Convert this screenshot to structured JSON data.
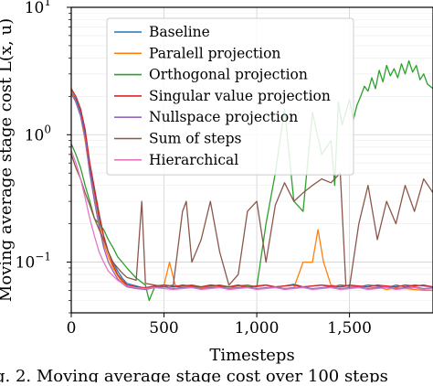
{
  "chart_data": {
    "type": "line",
    "xlabel": "Timesteps",
    "ylabel": "Moving average stage cost L(x, u)",
    "xlim": [
      0,
      1950
    ],
    "ylim": [
      0.04,
      10
    ],
    "yscale": "log",
    "grid": true,
    "legend_placement": "top-left",
    "x_ticks": [
      {
        "value": 0,
        "label": "0"
      },
      {
        "value": 500,
        "label": "500"
      },
      {
        "value": 1000,
        "label": "1,000"
      },
      {
        "value": 1500,
        "label": "1,500"
      }
    ],
    "y_ticks": [
      {
        "value": 0.1,
        "label": "10⁻¹",
        "base": "10",
        "exp": "−1"
      },
      {
        "value": 1,
        "label": "10⁰",
        "base": "10",
        "exp": "0"
      },
      {
        "value": 10,
        "label": "10¹",
        "base": "10",
        "exp": "1"
      }
    ],
    "series": [
      {
        "name": "Baseline",
        "color": "#1f77b4",
        "x": [
          0,
          25,
          50,
          75,
          100,
          125,
          150,
          175,
          200,
          225,
          250,
          275,
          300,
          350,
          400,
          450,
          500,
          550,
          600,
          650,
          700,
          750,
          800,
          850,
          900,
          950,
          1000,
          1050,
          1100,
          1150,
          1200,
          1250,
          1300,
          1350,
          1400,
          1450,
          1500,
          1550,
          1600,
          1650,
          1700,
          1750,
          1800,
          1850,
          1900,
          1950
        ],
        "y": [
          2.2,
          1.9,
          1.5,
          1.0,
          0.55,
          0.35,
          0.22,
          0.16,
          0.12,
          0.1,
          0.085,
          0.075,
          0.068,
          0.065,
          0.062,
          0.064,
          0.066,
          0.065,
          0.063,
          0.066,
          0.064,
          0.066,
          0.065,
          0.064,
          0.066,
          0.063,
          0.065,
          0.066,
          0.064,
          0.065,
          0.067,
          0.064,
          0.065,
          0.066,
          0.064,
          0.066,
          0.065,
          0.064,
          0.066,
          0.065,
          0.063,
          0.066,
          0.064,
          0.066,
          0.065,
          0.064
        ]
      },
      {
        "name": "Paralell projection",
        "color": "#ff7f0e",
        "x": [
          0,
          25,
          50,
          75,
          100,
          125,
          150,
          175,
          200,
          225,
          250,
          275,
          300,
          350,
          400,
          450,
          500,
          530,
          560,
          600,
          650,
          700,
          750,
          800,
          850,
          900,
          950,
          1000,
          1050,
          1100,
          1150,
          1200,
          1250,
          1300,
          1330,
          1360,
          1400,
          1450,
          1500,
          1550,
          1600,
          1650,
          1700,
          1750,
          1800,
          1850,
          1900,
          1950
        ],
        "y": [
          2.2,
          1.8,
          1.4,
          0.9,
          0.5,
          0.32,
          0.2,
          0.14,
          0.11,
          0.09,
          0.078,
          0.07,
          0.066,
          0.064,
          0.062,
          0.064,
          0.066,
          0.1,
          0.066,
          0.064,
          0.065,
          0.063,
          0.064,
          0.066,
          0.064,
          0.063,
          0.065,
          0.064,
          0.066,
          0.064,
          0.062,
          0.063,
          0.1,
          0.1,
          0.18,
          0.1,
          0.066,
          0.064,
          0.065,
          0.063,
          0.062,
          0.064,
          0.061,
          0.063,
          0.062,
          0.061,
          0.06,
          0.06
        ]
      },
      {
        "name": "Orthogonal projection",
        "color": "#2ca02c",
        "x": [
          0,
          25,
          50,
          75,
          100,
          125,
          150,
          175,
          200,
          225,
          250,
          275,
          300,
          350,
          400,
          420,
          450,
          500,
          550,
          600,
          650,
          700,
          750,
          800,
          850,
          900,
          950,
          1000,
          1050,
          1100,
          1150,
          1200,
          1250,
          1300,
          1350,
          1400,
          1420,
          1440,
          1460,
          1480,
          1500,
          1520,
          1540,
          1560,
          1580,
          1600,
          1620,
          1640,
          1660,
          1680,
          1700,
          1720,
          1740,
          1760,
          1780,
          1800,
          1820,
          1840,
          1860,
          1880,
          1900,
          1920,
          1950
        ],
        "y": [
          0.85,
          0.7,
          0.55,
          0.4,
          0.3,
          0.22,
          0.2,
          0.18,
          0.15,
          0.13,
          0.11,
          0.1,
          0.09,
          0.075,
          0.066,
          0.05,
          0.064,
          0.066,
          0.064,
          0.065,
          0.066,
          0.064,
          0.065,
          0.066,
          0.064,
          0.065,
          0.066,
          0.064,
          0.2,
          0.5,
          1.6,
          0.3,
          0.25,
          1.5,
          0.7,
          0.9,
          0.4,
          1.8,
          1.2,
          1.5,
          1.9,
          1.3,
          1.7,
          2.0,
          2.4,
          2.2,
          2.8,
          2.3,
          3.2,
          2.6,
          3.5,
          2.9,
          3.3,
          2.8,
          3.6,
          3.0,
          3.8,
          3.1,
          3.5,
          2.7,
          3.0,
          2.5,
          2.3
        ]
      },
      {
        "name": "Singular value projection",
        "color": "#d62728",
        "x": [
          0,
          25,
          50,
          75,
          100,
          125,
          150,
          175,
          200,
          225,
          250,
          275,
          300,
          350,
          400,
          450,
          500,
          550,
          600,
          650,
          700,
          750,
          800,
          850,
          900,
          950,
          1000,
          1050,
          1100,
          1150,
          1200,
          1250,
          1300,
          1350,
          1400,
          1450,
          1500,
          1550,
          1600,
          1650,
          1700,
          1750,
          1800,
          1850,
          1900,
          1950
        ],
        "y": [
          2.3,
          2.0,
          1.6,
          1.1,
          0.6,
          0.38,
          0.24,
          0.16,
          0.12,
          0.095,
          0.08,
          0.072,
          0.066,
          0.064,
          0.063,
          0.065,
          0.066,
          0.064,
          0.066,
          0.065,
          0.064,
          0.066,
          0.065,
          0.064,
          0.066,
          0.064,
          0.065,
          0.066,
          0.064,
          0.065,
          0.066,
          0.064,
          0.065,
          0.066,
          0.065,
          0.064,
          0.066,
          0.065,
          0.064,
          0.066,
          0.065,
          0.064,
          0.066,
          0.065,
          0.066,
          0.064
        ]
      },
      {
        "name": "Nullspace projection",
        "color": "#9467bd",
        "x": [
          0,
          25,
          50,
          75,
          100,
          125,
          150,
          175,
          200,
          225,
          250,
          275,
          300,
          350,
          400,
          450,
          500,
          550,
          600,
          650,
          700,
          750,
          800,
          850,
          900,
          950,
          1000,
          1050,
          1100,
          1150,
          1200,
          1250,
          1300,
          1350,
          1400,
          1450,
          1500,
          1550,
          1600,
          1650,
          1700,
          1750,
          1800,
          1850,
          1900,
          1950
        ],
        "y": [
          2.1,
          1.8,
          1.4,
          0.95,
          0.5,
          0.3,
          0.19,
          0.13,
          0.1,
          0.085,
          0.074,
          0.068,
          0.064,
          0.062,
          0.061,
          0.063,
          0.064,
          0.062,
          0.063,
          0.064,
          0.062,
          0.063,
          0.064,
          0.062,
          0.063,
          0.064,
          0.062,
          0.063,
          0.064,
          0.062,
          0.063,
          0.064,
          0.062,
          0.063,
          0.064,
          0.062,
          0.063,
          0.064,
          0.062,
          0.063,
          0.064,
          0.062,
          0.063,
          0.064,
          0.062,
          0.063
        ]
      },
      {
        "name": "Sum of steps",
        "color": "#8c564b",
        "x": [
          0,
          25,
          50,
          75,
          100,
          125,
          150,
          175,
          200,
          225,
          250,
          275,
          300,
          350,
          380,
          400,
          450,
          500,
          550,
          600,
          620,
          650,
          700,
          750,
          800,
          850,
          900,
          950,
          1000,
          1050,
          1100,
          1150,
          1200,
          1250,
          1300,
          1350,
          1400,
          1450,
          1480,
          1500,
          1550,
          1600,
          1650,
          1700,
          1750,
          1800,
          1850,
          1900,
          1950
        ],
        "y": [
          0.7,
          0.55,
          0.45,
          0.35,
          0.28,
          0.22,
          0.18,
          0.15,
          0.12,
          0.1,
          0.09,
          0.082,
          0.076,
          0.072,
          0.3,
          0.068,
          0.066,
          0.064,
          0.066,
          0.25,
          0.3,
          0.1,
          0.15,
          0.3,
          0.12,
          0.066,
          0.08,
          0.25,
          0.3,
          0.1,
          0.28,
          0.42,
          0.3,
          0.35,
          0.4,
          0.45,
          0.42,
          0.5,
          0.066,
          0.064,
          0.2,
          0.4,
          0.15,
          0.3,
          0.2,
          0.4,
          0.25,
          0.45,
          0.35
        ]
      },
      {
        "name": "Hierarchical",
        "color": "#e377c2",
        "x": [
          0,
          25,
          50,
          75,
          100,
          125,
          150,
          175,
          200,
          225,
          250,
          275,
          300,
          350,
          400,
          450,
          500,
          550,
          600,
          650,
          700,
          750,
          800,
          850,
          900,
          950,
          1000,
          1050,
          1100,
          1150,
          1200,
          1250,
          1300,
          1350,
          1400,
          1450,
          1500,
          1550,
          1600,
          1650,
          1700,
          1750,
          1800,
          1850,
          1900,
          1950
        ],
        "y": [
          0.75,
          0.6,
          0.45,
          0.32,
          0.22,
          0.16,
          0.12,
          0.1,
          0.085,
          0.078,
          0.072,
          0.068,
          0.065,
          0.063,
          0.062,
          0.063,
          0.062,
          0.061,
          0.062,
          0.063,
          0.061,
          0.062,
          0.063,
          0.061,
          0.062,
          0.063,
          0.061,
          0.062,
          0.063,
          0.061,
          0.062,
          0.063,
          0.061,
          0.062,
          0.063,
          0.061,
          0.062,
          0.063,
          0.061,
          0.062,
          0.063,
          0.061,
          0.062,
          0.063,
          0.061,
          0.062
        ]
      }
    ]
  },
  "caption": "g. 2. Moving average stage cost over 100 steps"
}
